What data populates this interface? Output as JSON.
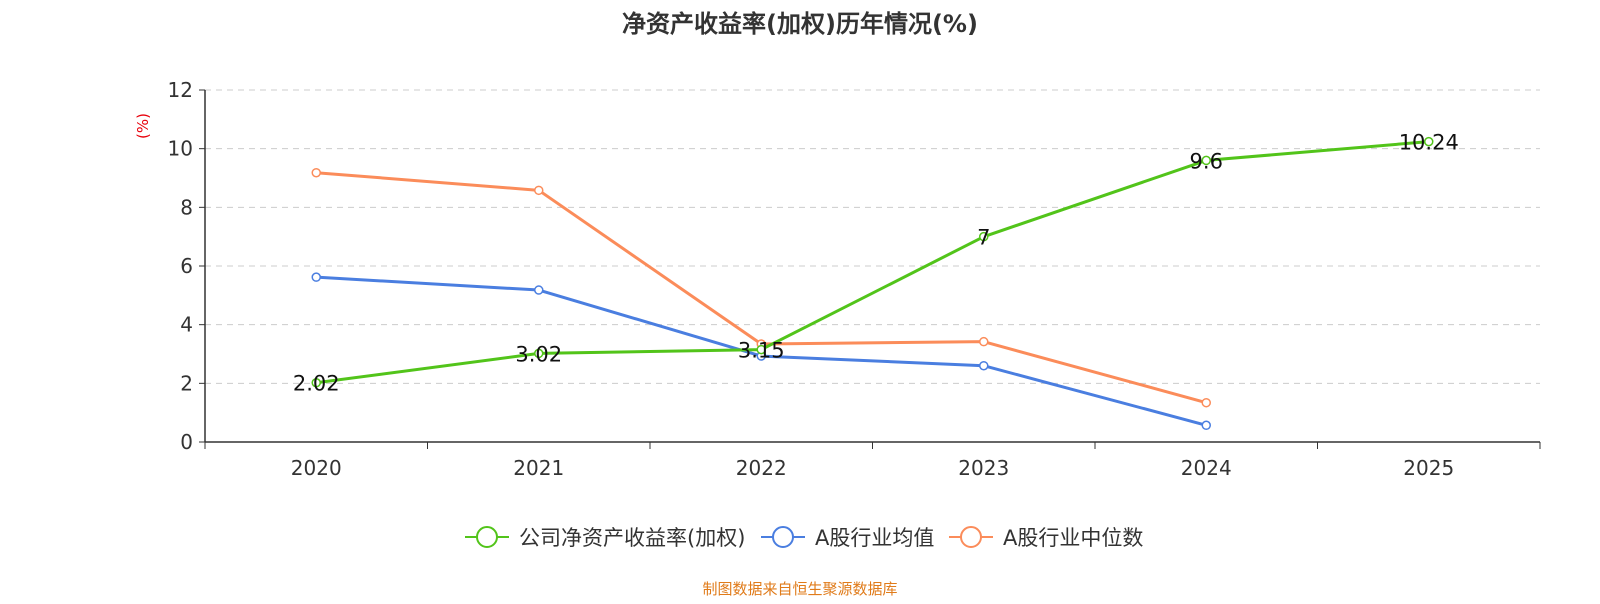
{
  "chart_data": {
    "type": "line",
    "title": "净资产收益率(加权)历年情况(%)",
    "ylabel": "(%)",
    "xlabel": "",
    "categories": [
      "2020",
      "2021",
      "2022",
      "2023",
      "2024",
      "2025"
    ],
    "ylim": [
      0,
      12
    ],
    "yticks": [
      0,
      2,
      4,
      6,
      8,
      10,
      12
    ],
    "grid": true,
    "legend_position": "bottom",
    "series": [
      {
        "name": "公司净资产收益率(加权)",
        "color": "#52c41a",
        "values": [
          2.02,
          3.02,
          3.15,
          7,
          9.6,
          10.24
        ],
        "labels": [
          "2.02",
          "3.02",
          "3.15",
          "7",
          "9.6",
          "10.24"
        ],
        "show_labels": true
      },
      {
        "name": "A股行业均值",
        "color": "#4a7ee0",
        "values": [
          5.62,
          5.18,
          2.93,
          2.6,
          0.57,
          null
        ],
        "show_labels": false
      },
      {
        "name": "A股行业中位数",
        "color": "#fb8c5a",
        "values": [
          9.18,
          8.58,
          3.34,
          3.42,
          1.34,
          null
        ],
        "show_labels": false
      }
    ],
    "source": "制图数据来自恒生聚源数据库",
    "colors": {
      "axis": "#333333",
      "grid": "#cccccc",
      "ylabel": "#e8000b",
      "source": "#e07b1a",
      "title": "#333333"
    }
  }
}
